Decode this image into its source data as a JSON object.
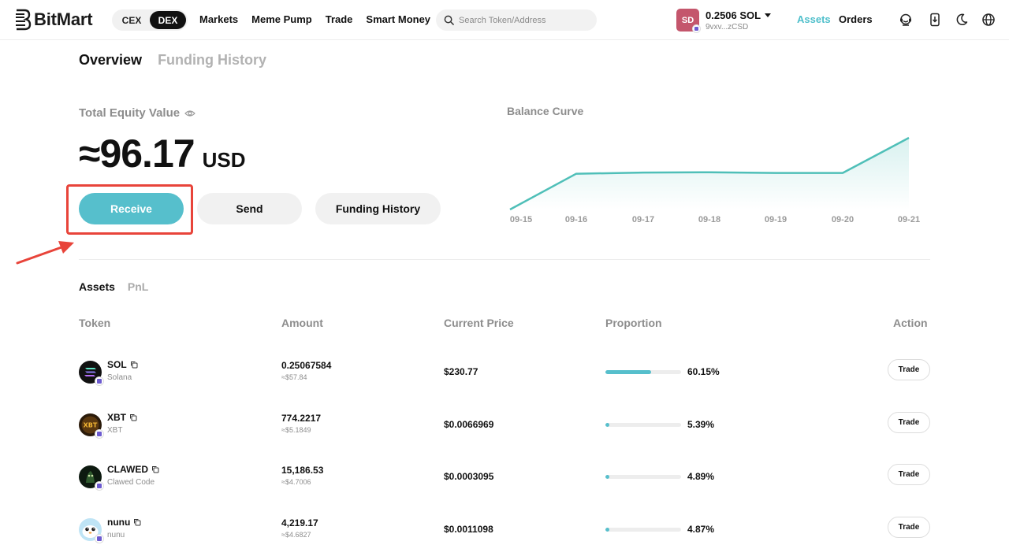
{
  "brand": {
    "name": "BitMart"
  },
  "header": {
    "mode_toggle": [
      {
        "label": "CEX",
        "active": false
      },
      {
        "label": "DEX",
        "active": true
      }
    ],
    "nav": [
      "Markets",
      "Meme Pump",
      "Trade",
      "Smart Money"
    ],
    "search": {
      "placeholder": "Search Token/Address",
      "value": ""
    },
    "wallet": {
      "avatar_initials": "SD",
      "balance": "0.2506 SOL",
      "address": "9vxv...zCSD",
      "avatar_color": "#c4566c"
    },
    "assets_label": "Assets",
    "orders_label": "Orders",
    "icons": [
      "support-icon",
      "download-app-icon",
      "dark-mode-icon",
      "language-icon"
    ]
  },
  "page_tabs": [
    {
      "label": "Overview",
      "active": true
    },
    {
      "label": "Funding History",
      "active": false
    }
  ],
  "equity": {
    "label": "Total Equity Value",
    "value": "≈96.17",
    "unit": "USD"
  },
  "actions": {
    "receive": "Receive",
    "send": "Send",
    "funding_history": "Funding History"
  },
  "balance_curve": {
    "title": "Balance Curve",
    "dates": [
      "09-15",
      "09-16",
      "09-17",
      "09-18",
      "09-19",
      "09-20",
      "09-21"
    ],
    "values": [
      0,
      48,
      49.5,
      50,
      49,
      49,
      96.17
    ],
    "line_color": "#4fbfb8"
  },
  "assets_section": {
    "tabs": [
      {
        "label": "Assets",
        "active": true
      },
      {
        "label": "PnL",
        "active": false
      }
    ],
    "columns": {
      "token": "Token",
      "amount": "Amount",
      "price": "Current Price",
      "proportion": "Proportion",
      "action": "Action"
    },
    "rows": [
      {
        "symbol": "SOL",
        "name": "Solana",
        "amount": "0.25067584",
        "amount_usd": "≈$57.84",
        "price": "$230.77",
        "proportion_pct": 60.15,
        "proportion": "60.15%",
        "action": "Trade",
        "icon": "solana-token-icon"
      },
      {
        "symbol": "XBT",
        "name": "XBT",
        "amount": "774.2217",
        "amount_usd": "≈$5.1849",
        "price": "$0.0066969",
        "proportion_pct": 5.39,
        "proportion": "5.39%",
        "action": "Trade",
        "icon": "xbt-token-icon"
      },
      {
        "symbol": "CLAWED",
        "name": "Clawed Code",
        "amount": "15,186.53",
        "amount_usd": "≈$4.7006",
        "price": "$0.0003095",
        "proportion_pct": 4.89,
        "proportion": "4.89%",
        "action": "Trade",
        "icon": "clawed-token-icon"
      },
      {
        "symbol": "nunu",
        "name": "nunu",
        "amount": "4,219.17",
        "amount_usd": "≈$4.6827",
        "price": "$0.0011098",
        "proportion_pct": 4.87,
        "proportion": "4.87%",
        "action": "Trade",
        "icon": "nunu-token-icon"
      }
    ]
  },
  "colors": {
    "accent": "#56bfcc",
    "highlight": "#e8443a"
  }
}
